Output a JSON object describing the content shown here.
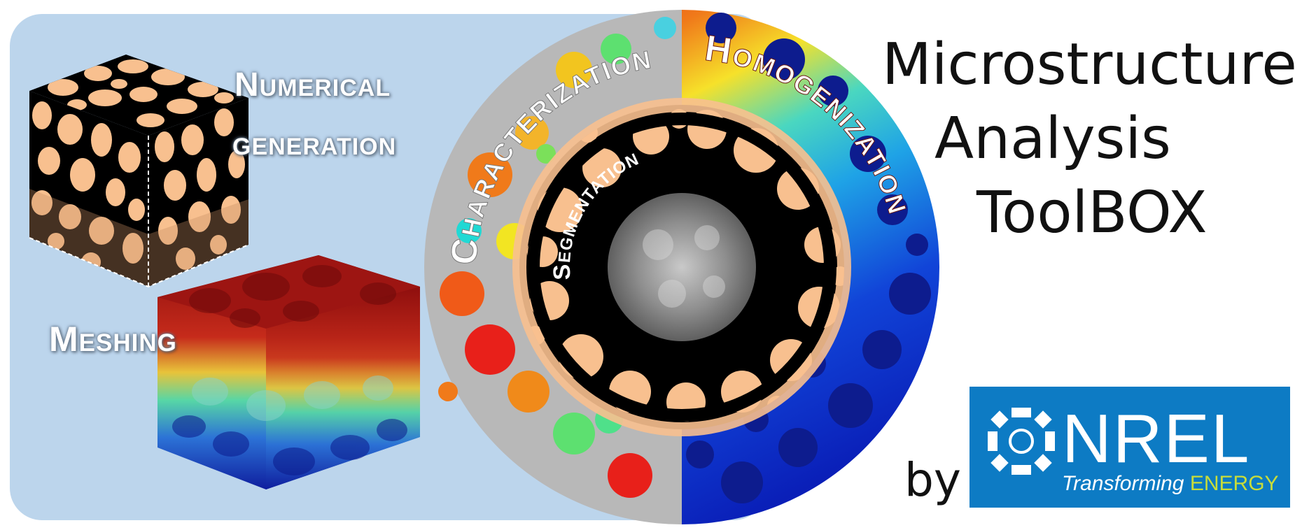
{
  "labels": {
    "numerical": "Numerical",
    "generation": "generation",
    "meshing": "Meshing"
  },
  "ring_labels": {
    "characterization": "Characterization",
    "homogenization": "Homogenization",
    "segmentation": "Segmentation"
  },
  "title": {
    "line1": "Microstructure",
    "line2": "Analysis",
    "line3": "ToolBOX"
  },
  "by": "by",
  "logo": {
    "name": "NREL",
    "tagline_1": "Transforming",
    "tagline_2": "ENERGY"
  },
  "colors": {
    "banner": "#bcd5ec",
    "particle": "#f8c08f",
    "pore": "#000000",
    "nrel_blue": "#0d7bc4",
    "nrel_green": "#c8dc3a"
  }
}
